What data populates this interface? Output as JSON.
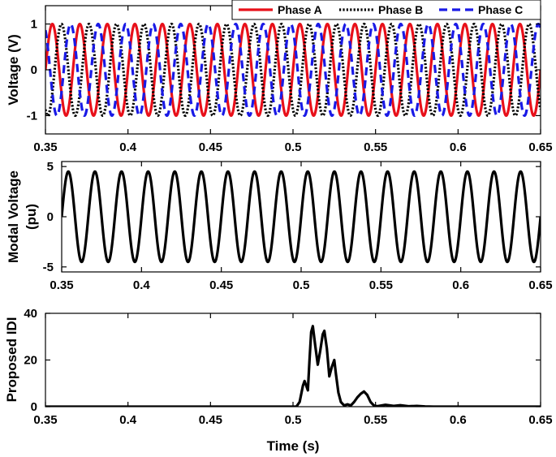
{
  "chart_data": [
    {
      "type": "line",
      "ylabel": "Voltage (V)",
      "xlim": [
        0.35,
        0.65
      ],
      "ylim": [
        -1.4,
        1.4
      ],
      "xticks": [
        "0.35",
        "0.4",
        "0.45",
        "0.5",
        "0.55",
        "0.6",
        "0.65"
      ],
      "yticks": [
        "1",
        "0",
        "-1"
      ],
      "legend_position": "top",
      "signal": {
        "amplitude": 1,
        "frequency_hz": 60,
        "x_range": [
          0.35,
          0.65
        ]
      },
      "series": [
        {
          "name": "Phase A",
          "phase_deg": 0,
          "color": "#e8101a",
          "style": "solid"
        },
        {
          "name": "Phase B",
          "phase_deg": -120,
          "color": "#000000",
          "style": "dotted"
        },
        {
          "name": "Phase C",
          "phase_deg": 120,
          "color": "#1a1ae6",
          "style": "dashed"
        }
      ]
    },
    {
      "type": "line",
      "ylabel_line1": "Modal Voltage",
      "ylabel_line2": "(pu)",
      "xlim": [
        0.35,
        0.65
      ],
      "ylim": [
        -5.5,
        5.5
      ],
      "xticks": [
        "0.35",
        "0.4",
        "0.45",
        "0.5",
        "0.55",
        "0.6",
        "0.65"
      ],
      "yticks": [
        "5",
        "0",
        "-5"
      ],
      "signal": {
        "amplitude": 4.5,
        "frequency_hz": 60,
        "x_range": [
          0.35,
          0.65
        ]
      },
      "series": [
        {
          "color": "#000000",
          "style": "solid"
        }
      ]
    },
    {
      "type": "line",
      "ylabel": "Proposed IDI",
      "xlabel": "Time (s)",
      "xlim": [
        0.35,
        0.65
      ],
      "ylim": [
        0,
        40
      ],
      "xticks": [
        "0.35",
        "0.4",
        "0.45",
        "0.5",
        "0.55",
        "0.6",
        "0.65"
      ],
      "yticks": [
        "40",
        "20",
        "0"
      ],
      "series": [
        {
          "color": "#000000",
          "x": [
            0.35,
            0.502,
            0.504,
            0.506,
            0.507,
            0.509,
            0.51,
            0.511,
            0.512,
            0.5135,
            0.515,
            0.5165,
            0.518,
            0.519,
            0.5205,
            0.522,
            0.5235,
            0.525,
            0.526,
            0.5275,
            0.529,
            0.531,
            0.533,
            0.535,
            0.537,
            0.539,
            0.541,
            0.543,
            0.545,
            0.547,
            0.549,
            0.551,
            0.556,
            0.561,
            0.565,
            0.57,
            0.575,
            0.58,
            0.585,
            0.65
          ],
          "y": [
            0,
            0,
            2,
            9,
            11,
            7,
            20,
            32,
            34.5,
            26,
            18,
            24,
            31,
            32.5,
            25,
            13,
            17,
            20,
            14,
            6,
            2,
            0.5,
            1,
            0.5,
            2,
            4,
            5.5,
            6.5,
            5,
            2,
            0.5,
            0.2,
            0.8,
            0.3,
            0.6,
            0.2,
            0.3,
            0.1,
            0,
            0
          ]
        }
      ]
    }
  ]
}
